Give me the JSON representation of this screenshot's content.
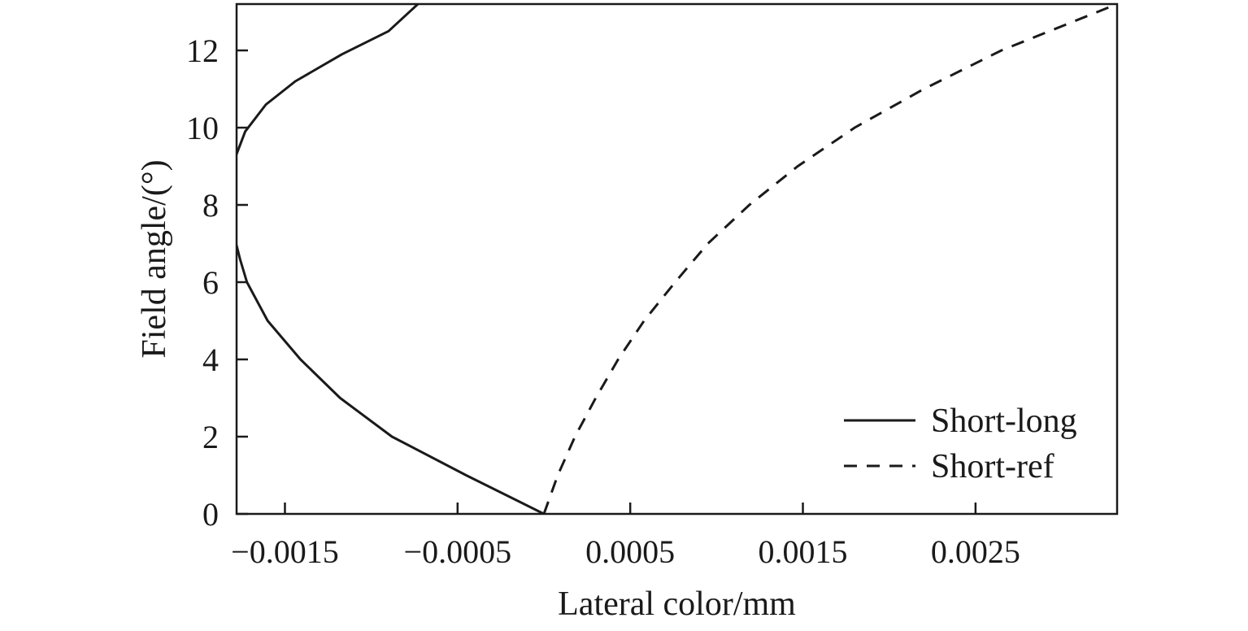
{
  "chart_data": {
    "type": "line",
    "title": "",
    "xlabel": "Lateral color/mm",
    "ylabel": "Field angle/(°)",
    "xlim": [
      -0.00178,
      0.00332
    ],
    "ylim": [
      0,
      13.2
    ],
    "xticks": [
      -0.0015,
      -0.0005,
      0.0005,
      0.0015,
      0.0025
    ],
    "xtick_labels": [
      "−0.0015",
      "−0.0005",
      "0.0005",
      "0.0015",
      "0.0025"
    ],
    "yticks": [
      0,
      2,
      4,
      6,
      8,
      10,
      12
    ],
    "ytick_labels": [
      "0",
      "2",
      "4",
      "6",
      "8",
      "10",
      "12"
    ],
    "grid": false,
    "legend_position": "bottom-right",
    "series": [
      {
        "name": "Short-long",
        "style": "solid",
        "color": "#1a1a1a",
        "points": [
          [
            0.0,
            0.0
          ],
          [
            -0.00045,
            1.0
          ],
          [
            -0.00088,
            2.0
          ],
          [
            -0.00118,
            3.0
          ],
          [
            -0.00141,
            4.0
          ],
          [
            -0.0016,
            5.0
          ],
          [
            -0.00172,
            6.0
          ],
          [
            -0.00176,
            6.6
          ],
          [
            -0.0018,
            7.3
          ],
          [
            -0.00182,
            8.0
          ],
          [
            -0.00182,
            8.6
          ],
          [
            -0.00179,
            9.2
          ],
          [
            -0.00173,
            9.9
          ],
          [
            -0.00161,
            10.6
          ],
          [
            -0.00144,
            11.2
          ],
          [
            -0.00117,
            11.9
          ],
          [
            -0.0009,
            12.5
          ],
          [
            -0.00073,
            13.2
          ]
        ]
      },
      {
        "name": "Short-ref",
        "style": "dashed",
        "color": "#1a1a1a",
        "points": [
          [
            0.0,
            0.0
          ],
          [
            8e-05,
            1.0
          ],
          [
            0.00018,
            2.0
          ],
          [
            0.0003,
            3.0
          ],
          [
            0.00043,
            4.0
          ],
          [
            0.00058,
            5.0
          ],
          [
            0.00076,
            6.0
          ],
          [
            0.00095,
            7.0
          ],
          [
            0.00119,
            8.0
          ],
          [
            0.00147,
            9.0
          ],
          [
            0.0018,
            10.0
          ],
          [
            0.0022,
            11.0
          ],
          [
            0.00265,
            12.0
          ],
          [
            0.00332,
            13.2
          ]
        ]
      }
    ]
  }
}
